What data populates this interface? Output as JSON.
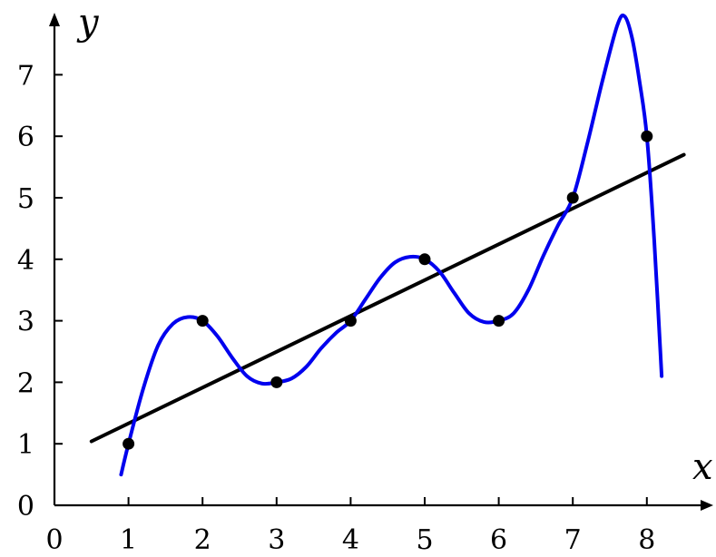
{
  "chart_data": {
    "type": "scatter",
    "xlabel": "x",
    "ylabel": "y",
    "xlim": [
      0,
      8.7
    ],
    "ylim": [
      0,
      7.8
    ],
    "x_ticks": [
      "0",
      "1",
      "2",
      "3",
      "4",
      "5",
      "6",
      "7",
      "8"
    ],
    "y_ticks": [
      "0",
      "1",
      "2",
      "3",
      "4",
      "5",
      "6",
      "7"
    ],
    "grid": false,
    "legend": "none",
    "points": {
      "x": [
        1,
        2,
        3,
        4,
        5,
        6,
        7,
        8
      ],
      "y": [
        1,
        3,
        2,
        3,
        4,
        3,
        5,
        6
      ]
    },
    "series": [
      {
        "kind": "line",
        "color": "#000000",
        "x": [
          0.5,
          8.5
        ],
        "y": [
          1.04,
          5.7
        ]
      },
      {
        "kind": "curve",
        "color": "#0000ee",
        "x": [
          0.9,
          1.0,
          1.2,
          1.4,
          1.6,
          1.8,
          2.0,
          2.2,
          2.4,
          2.6,
          2.8,
          3.0,
          3.2,
          3.4,
          3.6,
          3.8,
          4.0,
          4.2,
          4.4,
          4.6,
          4.8,
          5.0,
          5.2,
          5.4,
          5.6,
          5.8,
          6.0,
          6.2,
          6.4,
          6.6,
          6.8,
          7.0,
          7.2,
          7.4,
          7.6,
          7.7,
          7.8,
          7.9,
          8.0,
          8.1,
          8.2
        ],
        "y": [
          0.5,
          1.0,
          1.9,
          2.6,
          2.95,
          3.06,
          3.0,
          2.75,
          2.4,
          2.1,
          1.98,
          2.0,
          2.06,
          2.25,
          2.55,
          2.8,
          3.0,
          3.35,
          3.7,
          3.95,
          4.04,
          4.0,
          3.8,
          3.45,
          3.12,
          2.98,
          3.0,
          3.12,
          3.5,
          4.05,
          4.55,
          5.0,
          5.9,
          6.9,
          7.8,
          7.95,
          7.6,
          6.9,
          6.0,
          4.3,
          2.1
        ]
      }
    ]
  }
}
